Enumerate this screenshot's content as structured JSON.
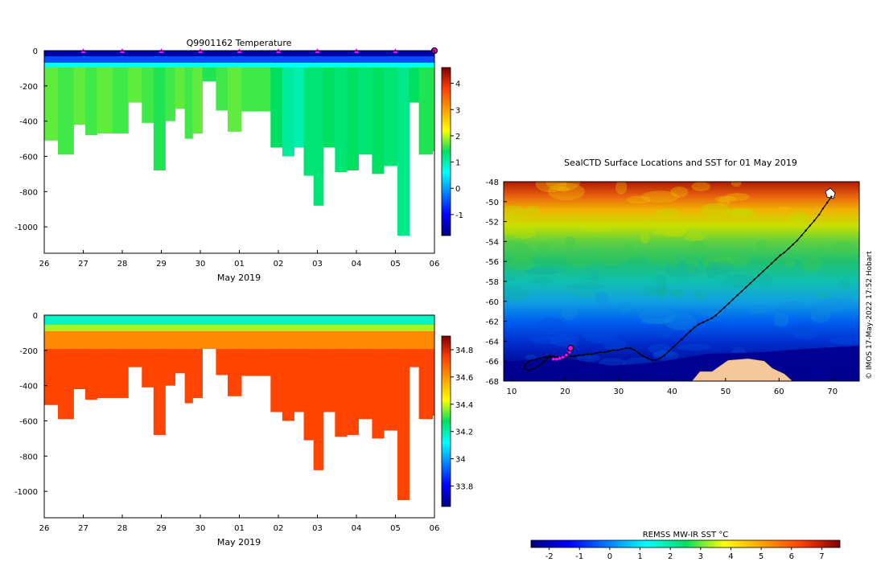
{
  "chart_data": [
    {
      "type": "heatmap",
      "id": "temp",
      "title": "Q9901162  Temperature",
      "xlabel": "May 2019",
      "x_ticks": [
        "26",
        "27",
        "28",
        "29",
        "30",
        "01",
        "02",
        "03",
        "04",
        "05",
        "06"
      ],
      "y_ticks": [
        0,
        -200,
        -400,
        -600,
        -800,
        -1000
      ],
      "ylim": [
        -1150,
        0
      ],
      "xlim": [
        0,
        10
      ],
      "colorbar_ticks": [
        4,
        3,
        2,
        1,
        0,
        -1
      ],
      "colorbar_range": [
        -1.8,
        4.6
      ],
      "profile_markers_x": [
        1,
        2,
        3,
        4,
        5,
        6,
        7,
        8,
        9
      ],
      "current_marker_x": 10,
      "profile_x": [
        0.0,
        0.35,
        0.75,
        1.05,
        1.35,
        1.75,
        2.15,
        2.5,
        2.8,
        3.1,
        3.35,
        3.6,
        3.8,
        4.05,
        4.4,
        4.7,
        5.05,
        5.35,
        5.8,
        6.1,
        6.4,
        6.65,
        6.9,
        7.15,
        7.45,
        7.75,
        8.05,
        8.4,
        8.7,
        9.05,
        9.35,
        9.6,
        9.95
      ],
      "profile_depth": [
        510,
        590,
        420,
        480,
        470,
        470,
        295,
        410,
        680,
        400,
        330,
        500,
        470,
        175,
        340,
        460,
        345,
        345,
        550,
        600,
        550,
        710,
        880,
        550,
        690,
        680,
        590,
        700,
        655,
        1050,
        295,
        590,
        570
      ],
      "profile_column_temp": [
        1.7,
        1.6,
        1.7,
        1.6,
        1.7,
        1.6,
        1.7,
        1.6,
        1.5,
        1.6,
        1.7,
        1.6,
        1.7,
        1.5,
        1.6,
        1.7,
        1.6,
        1.6,
        1.4,
        1.1,
        1.0,
        1.3,
        1.3,
        1.4,
        1.3,
        1.4,
        1.3,
        1.4,
        1.3,
        1.2,
        1.4,
        1.5,
        1.5
      ]
    },
    {
      "type": "heatmap",
      "id": "salinity",
      "title": "",
      "xlabel": "May 2019",
      "x_ticks": [
        "26",
        "27",
        "28",
        "29",
        "30",
        "01",
        "02",
        "03",
        "04",
        "05",
        "06"
      ],
      "y_ticks": [
        0,
        -200,
        -400,
        -600,
        -800,
        -1000
      ],
      "ylim": [
        -1150,
        0
      ],
      "xlim": [
        0,
        10
      ],
      "colorbar_ticks": [
        34.8,
        34.6,
        34.4,
        34.2,
        34,
        33.8
      ],
      "colorbar_range": [
        33.65,
        34.9
      ]
    },
    {
      "type": "heatmap",
      "id": "map",
      "title": "SealCTD Surface Locations and SST for 01 May 2019",
      "x_ticks": [
        10,
        20,
        30,
        40,
        50,
        60,
        70
      ],
      "y_ticks": [
        -48,
        -50,
        -52,
        -54,
        -56,
        -58,
        -60,
        -62,
        -64,
        -66,
        -68
      ],
      "xlim": [
        8.5,
        75
      ],
      "ylim": [
        -68,
        -48
      ],
      "colorbar_label": "REMSS MW-IR SST °C",
      "colorbar_ticks": [
        -2,
        -1,
        0,
        1,
        2,
        3,
        4,
        5,
        6,
        7
      ],
      "colorbar_range": [
        -2.6,
        7.6
      ],
      "credit": "© IMOS 17-May-2022 17:52 Hobart",
      "track_lon": [
        69.8,
        69.0,
        68.2,
        67.5,
        66.6,
        65.8,
        65.0,
        64.2,
        63.4,
        62.6,
        61.8,
        61.0,
        60.2,
        59.4,
        58.6,
        57.8,
        57.0,
        56.2,
        55.4,
        54.6,
        53.8,
        53.0,
        52.2,
        51.4,
        50.6,
        49.8,
        49.0,
        48.2,
        47.4,
        46.6,
        45.8,
        45.0,
        44.2,
        43.4,
        42.6,
        41.8,
        41.0,
        40.2,
        39.4,
        38.6,
        37.8,
        37.0,
        36.2,
        35.4,
        34.6,
        33.8,
        33.0,
        32.2,
        31.4,
        30.6,
        29.8,
        29.0,
        28.2,
        27.4,
        26.6,
        25.8,
        25.0,
        24.2,
        23.4,
        22.6,
        21.8,
        21.0,
        20.2,
        19.4,
        18.6,
        17.8,
        17.0,
        16.2,
        15.4,
        14.6,
        13.8,
        13.0,
        12.5,
        12.3,
        13.0,
        14.0,
        15.0,
        16.0,
        16.6,
        17.2,
        18.0,
        19.0,
        20.0,
        20.5,
        21.0
      ],
      "track_lat": [
        -49.5,
        -50.1,
        -50.7,
        -51.3,
        -51.9,
        -52.4,
        -52.9,
        -53.4,
        -53.9,
        -54.3,
        -54.7,
        -55.1,
        -55.4,
        -55.8,
        -56.2,
        -56.6,
        -57.0,
        -57.4,
        -57.8,
        -58.2,
        -58.6,
        -59.0,
        -59.4,
        -59.8,
        -60.2,
        -60.6,
        -61.0,
        -61.4,
        -61.7,
        -61.9,
        -62.1,
        -62.3,
        -62.6,
        -63.0,
        -63.4,
        -63.8,
        -64.2,
        -64.6,
        -65.0,
        -65.4,
        -65.7,
        -65.9,
        -65.9,
        -65.7,
        -65.5,
        -65.2,
        -64.9,
        -64.7,
        -64.7,
        -64.8,
        -64.9,
        -64.9,
        -65.0,
        -65.1,
        -65.1,
        -65.2,
        -65.3,
        -65.3,
        -65.4,
        -65.4,
        -65.5,
        -65.5,
        -65.6,
        -65.6,
        -65.6,
        -65.5,
        -65.5,
        -65.6,
        -65.7,
        -65.8,
        -65.9,
        -66.1,
        -66.4,
        -66.7,
        -66.9,
        -66.8,
        -66.5,
        -66.1,
        -65.7,
        -65.6,
        -65.7,
        -65.8,
        -65.6,
        -65.3,
        -64.7
      ],
      "recent_lon": [
        17.8,
        18.4,
        19.0,
        19.6,
        20.2,
        20.8
      ],
      "recent_lat": [
        -65.8,
        -65.8,
        -65.7,
        -65.6,
        -65.4,
        -65.1
      ],
      "current_lon": 21.0,
      "current_lat": -64.7
    }
  ]
}
